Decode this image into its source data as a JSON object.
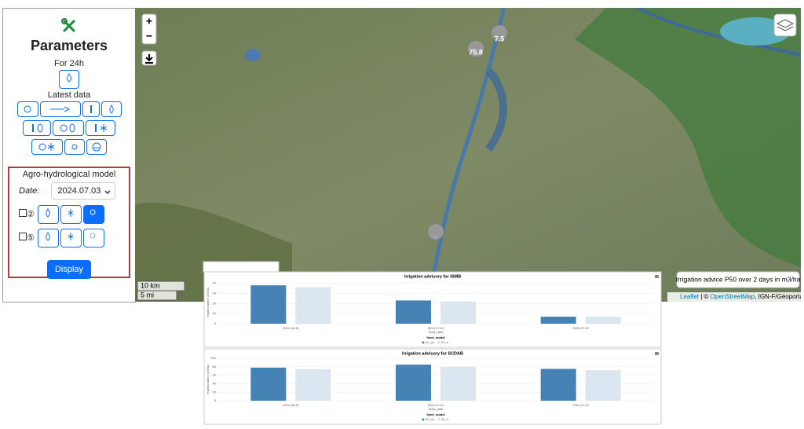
{
  "sidebar": {
    "title": "Parameters",
    "for_24h": "For 24h",
    "latest_data": "Latest data",
    "model": {
      "title": "Agro-hydrological model",
      "date_label": "Date:",
      "date_value": "2024.07.03",
      "row_1_days": "②",
      "row_2_days": "⑤",
      "display": "Display"
    }
  },
  "map": {
    "zoom_in": "+",
    "zoom_out": "−",
    "markers": [
      "75.8",
      "7.5",
      "-"
    ],
    "scale_km": "10 km",
    "scale_mi": "5 mi",
    "tooltip": "Irrigation advice P50 over 2 days in m3/ha",
    "attribution": {
      "leaflet": "Leaflet",
      "sep": " | © ",
      "osm": "OpenStreetMap",
      "rest": ", IGN-F/Géoportail"
    }
  },
  "chart_data": [
    {
      "type": "bar",
      "title": "Irrigation advisory for ISMB",
      "categories": [
        "2024-06-30",
        "2024-07-01",
        "2024-07-02"
      ],
      "x_label": "fixed_date",
      "y_label": "Irrigation advice (m3/ha)",
      "legend_title": "fixed_model",
      "series": [
        {
          "name": "22_sa",
          "color": "#4682b4",
          "values": [
            38,
            23,
            7
          ]
        },
        {
          "name": "22_ir",
          "color": "#dce6f0",
          "values": [
            36,
            22,
            7
          ]
        }
      ],
      "ylim": [
        0,
        42
      ],
      "yticks": [
        0,
        10,
        20,
        30,
        40
      ],
      "grid": true
    },
    {
      "type": "bar",
      "title": "Irrigation advisory for SCDAB",
      "categories": [
        "2024-06-30",
        "2024-07-01",
        "2024-07-02"
      ],
      "x_label": "fixed_date",
      "y_label": "Irrigation advice (m3/ha)",
      "legend_title": "fixed_model",
      "series": [
        {
          "name": "22_sa",
          "color": "#4682b4",
          "values": [
            78,
            85,
            75
          ]
        },
        {
          "name": "22_ir",
          "color": "#dce6f0",
          "values": [
            74,
            80,
            72
          ]
        }
      ],
      "ylim": [
        0,
        100
      ],
      "yticks": [
        0,
        20,
        40,
        60,
        80,
        100
      ],
      "grid": true
    }
  ]
}
